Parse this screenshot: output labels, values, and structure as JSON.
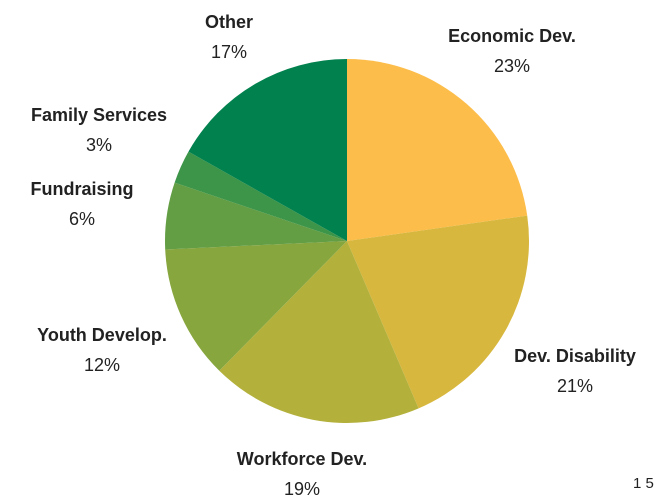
{
  "chart_data": {
    "type": "pie",
    "title": "",
    "slices": [
      {
        "label": "Economic Dev.",
        "value": 23,
        "value_label": "23%",
        "color": "#FDBD4A"
      },
      {
        "label": "Dev. Disability",
        "value": 21,
        "value_label": "21%",
        "color": "#D7B73E"
      },
      {
        "label": "Workforce Dev.",
        "value": 19,
        "value_label": "19%",
        "color": "#B3B13C"
      },
      {
        "label": "Youth Develop.",
        "value": 12,
        "value_label": "12%",
        "color": "#88A63E"
      },
      {
        "label": "Fundraising",
        "value": 6,
        "value_label": "6%",
        "color": "#639E44"
      },
      {
        "label": "Family Services",
        "value": 3,
        "value_label": "3%",
        "color": "#3C9548"
      },
      {
        "label": "Other",
        "value": 17,
        "value_label": "17%",
        "color": "#01814D"
      }
    ],
    "start_angle_deg": 0,
    "direction": "clockwise",
    "legend": "none"
  },
  "page_number": "1 5"
}
